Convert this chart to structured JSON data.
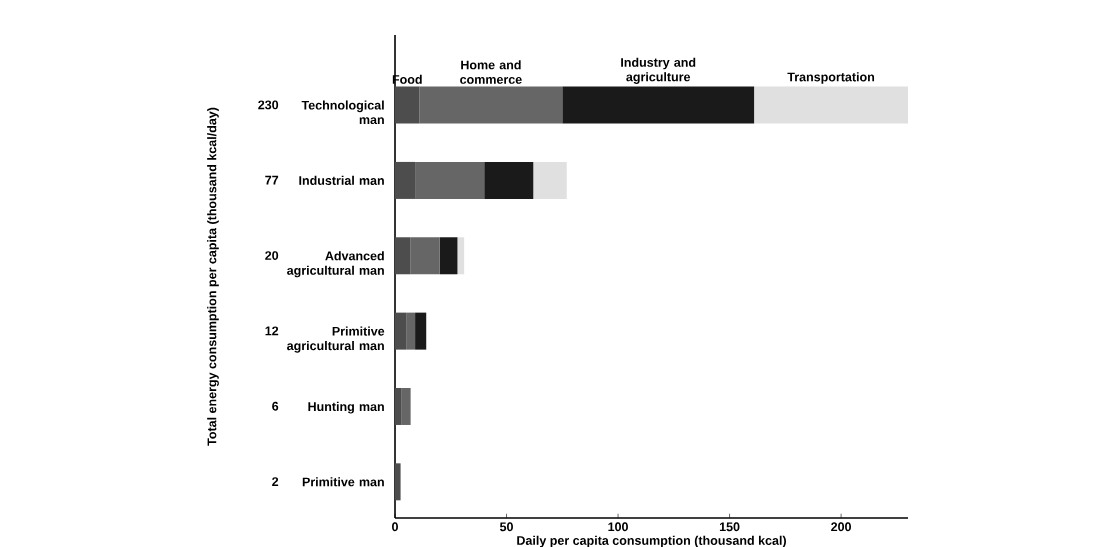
{
  "chart_data": {
    "type": "bar",
    "orientation": "horizontal",
    "stacked": true,
    "xlabel": "Daily per capita consumption (thousand kcal)",
    "categories": [
      "Technological man",
      "Industrial man",
      "Advanced agricultural man",
      "Primitive agricultural man",
      "Hunting man",
      "Primitive man"
    ],
    "annotations": [
      "Total energy consumption per capita (thousand kcal/day)",
      "230",
      "77",
      "20",
      "12",
      "6",
      "2"
    ],
    "series": [
      {
        "name": "Food",
        "color": "#4d4d4d",
        "values": [
          11,
          9,
          7,
          5,
          3,
          2.5
        ]
      },
      {
        "name": "Home and commerce",
        "color": "#666666",
        "values": [
          64,
          31,
          13,
          4,
          4,
          null
        ]
      },
      {
        "name": "Industry and agriculture",
        "color": "#1a1a1a",
        "values": [
          86,
          22,
          8,
          5,
          null,
          null
        ]
      },
      {
        "name": "Transportation",
        "color": "#e0e0e0",
        "values": [
          69,
          15,
          3,
          null,
          null,
          null
        ]
      }
    ],
    "xlim": [
      0,
      230
    ],
    "xticks": [
      0,
      50,
      100,
      150,
      200
    ]
  }
}
